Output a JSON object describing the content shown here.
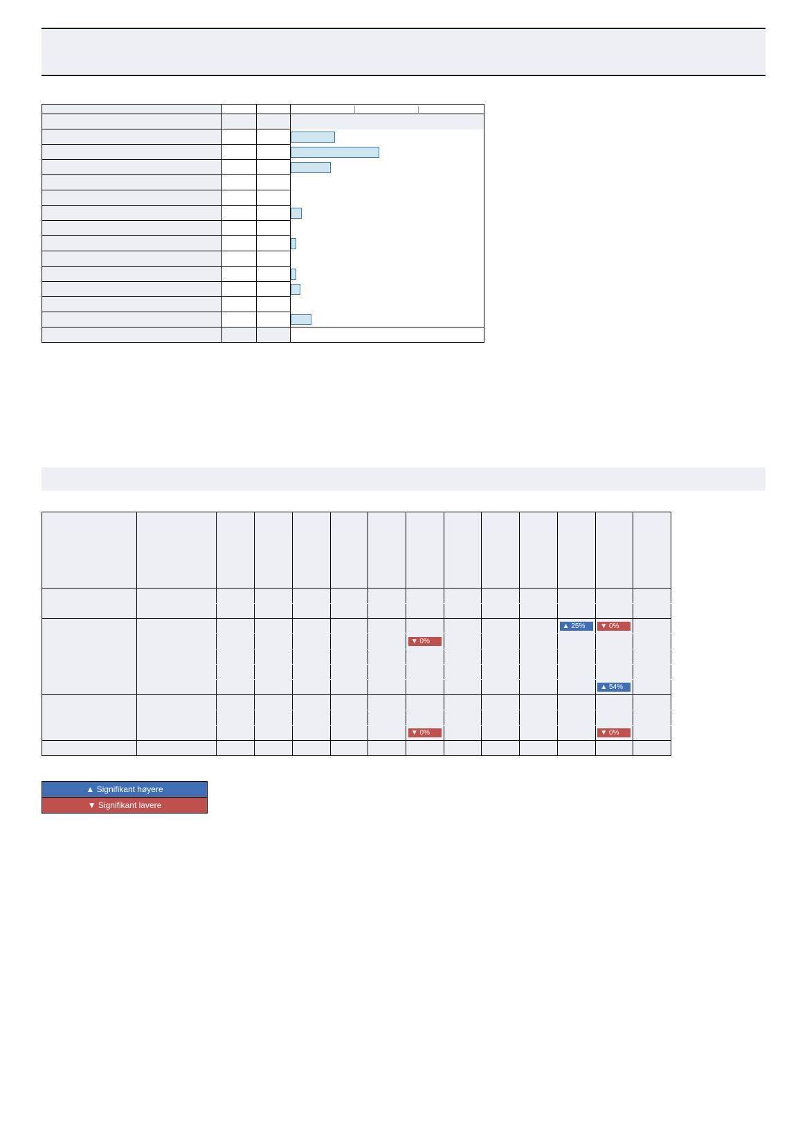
{
  "colors": {
    "band_bg": "#eceff3",
    "bar_fill": "#cfe6f1",
    "bar_border": "#3b76a3",
    "sig_up": "#3f6fb5",
    "sig_down": "#c0504d",
    "grid": "#999999",
    "page_bg": "#ffffff",
    "rule": "#000000"
  },
  "title": {
    "line1": "",
    "line2": ""
  },
  "barchart": {
    "type": "bar",
    "xmax": 100,
    "header": {
      "label": "",
      "n": "",
      "pct": ""
    },
    "rows": [
      {
        "label": "",
        "n": "",
        "pct": "",
        "value": 22
      },
      {
        "label": "",
        "n": "",
        "pct": "",
        "value": 45
      },
      {
        "label": "",
        "n": "",
        "pct": "",
        "value": 20
      },
      {
        "label": "",
        "n": "",
        "pct": "",
        "value": 0
      },
      {
        "label": "",
        "n": "",
        "pct": "",
        "value": 0
      },
      {
        "label": "",
        "n": "",
        "pct": "",
        "value": 5
      },
      {
        "label": "",
        "n": "",
        "pct": "",
        "value": 0
      },
      {
        "label": "",
        "n": "",
        "pct": "",
        "value": 2
      },
      {
        "label": "",
        "n": "",
        "pct": "",
        "value": 0
      },
      {
        "label": "",
        "n": "",
        "pct": "",
        "value": 2
      },
      {
        "label": "",
        "n": "",
        "pct": "",
        "value": 4
      },
      {
        "label": "",
        "n": "",
        "pct": "",
        "value": 0
      },
      {
        "label": "",
        "n": "",
        "pct": "",
        "value": 10
      }
    ],
    "total": {
      "label": "",
      "n": "",
      "pct": ""
    }
  },
  "cross": {
    "band_text": "",
    "columns": [
      "",
      "",
      "",
      "",
      "",
      "",
      "",
      "",
      "",
      "",
      "",
      ""
    ],
    "groups": [
      {
        "stub": "",
        "rows": [
          {
            "stub": "",
            "cells": [
              "",
              "",
              "",
              "",
              "",
              "",
              "",
              "",
              "",
              "",
              "",
              ""
            ]
          },
          {
            "stub": "",
            "cells": [
              "",
              "",
              "",
              "",
              "",
              "",
              "",
              "",
              "",
              "",
              "",
              ""
            ]
          }
        ]
      },
      {
        "stub": "",
        "rows": [
          {
            "stub": "",
            "cells": [
              "",
              "",
              "",
              "",
              "",
              "",
              "",
              "",
              "",
              {
                "dir": "up",
                "text": "25%"
              },
              {
                "dir": "down",
                "text": "0%"
              },
              ""
            ]
          },
          {
            "stub": "",
            "cells": [
              "",
              "",
              "",
              "",
              "",
              {
                "dir": "down",
                "text": "0%"
              },
              "",
              "",
              "",
              "",
              "",
              ""
            ]
          },
          {
            "stub": "",
            "cells": [
              "",
              "",
              "",
              "",
              "",
              "",
              "",
              "",
              "",
              "",
              "",
              ""
            ]
          },
          {
            "stub": "",
            "cells": [
              "",
              "",
              "",
              "",
              "",
              "",
              "",
              "",
              "",
              "",
              "",
              ""
            ]
          },
          {
            "stub": "",
            "cells": [
              "",
              "",
              "",
              "",
              "",
              "",
              "",
              "",
              "",
              "",
              {
                "dir": "up",
                "text": "54%"
              },
              ""
            ]
          }
        ]
      },
      {
        "stub": "",
        "rows": [
          {
            "stub": "",
            "cells": [
              "",
              "",
              "",
              "",
              "",
              "",
              "",
              "",
              "",
              "",
              "",
              ""
            ]
          },
          {
            "stub": "",
            "cells": [
              "",
              "",
              "",
              "",
              "",
              "",
              "",
              "",
              "",
              "",
              "",
              ""
            ]
          },
          {
            "stub": "",
            "cells": [
              "",
              "",
              "",
              "",
              "",
              {
                "dir": "down",
                "text": "0%"
              },
              "",
              "",
              "",
              "",
              {
                "dir": "down",
                "text": "0%"
              },
              ""
            ]
          }
        ]
      }
    ],
    "footer": {
      "cells": [
        "",
        "",
        "",
        "",
        "",
        "",
        "",
        "",
        "",
        "",
        "",
        ""
      ]
    }
  },
  "legend": {
    "up": "Signifikant høyere",
    "down": "Signifikant lavere"
  },
  "glyph": {
    "up": "▲",
    "down": "▼"
  }
}
